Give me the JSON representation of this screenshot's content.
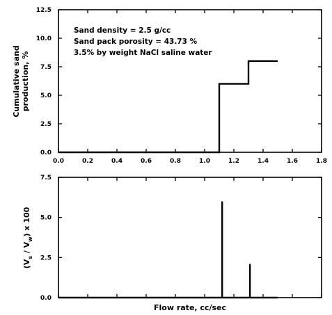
{
  "chart_data": [
    {
      "type": "line",
      "title": "",
      "xlabel": "",
      "ylabel": "Cumulative sand production, %",
      "ylabel_lines": [
        "Cumulative sand",
        "production, %"
      ],
      "xlim": [
        0,
        1.8
      ],
      "ylim": [
        0,
        12.5
      ],
      "xticks": [
        "0.0",
        "0.2",
        "0.4",
        "0.6",
        "0.8",
        "1.0",
        "1.2",
        "1.4",
        "1.6",
        "1.8"
      ],
      "yticks": [
        "0.0",
        "2.5",
        "5.0",
        "7.5",
        "10.0",
        "12.5"
      ],
      "annotations": [
        "Sand density = 2.5 g/cc",
        "Sand pack porosity = 43.73 %",
        "3.5% by weight NaCl saline water"
      ],
      "series": [
        {
          "x": [
            0.0,
            1.1,
            1.1,
            1.3,
            1.3,
            1.5
          ],
          "y": [
            0.0,
            0.0,
            6.0,
            6.0,
            8.0,
            8.0
          ]
        }
      ]
    },
    {
      "type": "line",
      "title": "",
      "xlabel": "Flow rate,  cc/sec",
      "ylabel": "(Vs / Vw) x 100",
      "ylabel_parts": {
        "open": "(V",
        "s": "s",
        "mid": " / V",
        "w": "w",
        "close": ") x 100"
      },
      "xlim": [
        0,
        1.8
      ],
      "ylim": [
        0,
        7.5
      ],
      "yticks": [
        "0.0",
        "2.5",
        "5.0",
        "7.5"
      ],
      "series": [
        {
          "x": [
            0.0,
            1.12,
            1.12,
            1.12,
            1.31,
            1.31,
            1.31,
            1.5
          ],
          "y": [
            0.0,
            0.0,
            6.0,
            0.0,
            0.0,
            2.1,
            0.0,
            0.0
          ]
        }
      ]
    }
  ]
}
